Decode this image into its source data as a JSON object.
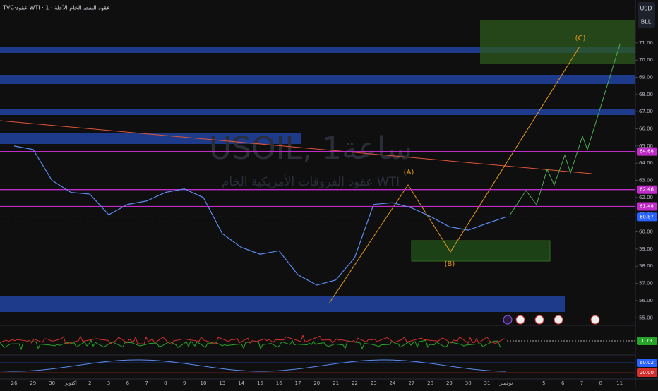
{
  "header": {
    "symbol": "TVC·عقود WTI · 1 · عقود النفط الخام الآجلة",
    "currency": "USD",
    "unit": "BLL"
  },
  "chart_data": {
    "type": "line",
    "watermark": "USOIL, 1ساعة",
    "watermark_subtitle": "عقود الفروقات الأمريكية الخام WTI",
    "categories": [
      "26",
      "29",
      "30",
      "أكتوبر",
      "2",
      "3",
      "6",
      "7",
      "8",
      "9",
      "10",
      "13",
      "14",
      "15",
      "16",
      "17",
      "20",
      "21",
      "22",
      "23",
      "24",
      "27",
      "28",
      "29",
      "30",
      "31",
      "نوفمبر",
      null,
      "5",
      "6",
      "7",
      "8",
      "11"
    ],
    "values": [
      65.0,
      64.8,
      63.0,
      62.3,
      62.2,
      61.0,
      61.6,
      61.8,
      62.3,
      62.5,
      62.0,
      59.9,
      59.1,
      58.7,
      58.9,
      57.5,
      56.9,
      57.2,
      58.5,
      61.6,
      61.7,
      61.4,
      60.9,
      60.3,
      60.1,
      60.5,
      60.87,
      null,
      null,
      null,
      null,
      null,
      null
    ],
    "color": "#5b8cf0",
    "ylim": [
      54.6,
      73.5
    ],
    "yticks": [
      {
        "value": 55,
        "label": "55.00"
      },
      {
        "value": 56,
        "label": "56.00"
      },
      {
        "value": 57,
        "label": "57.00"
      },
      {
        "value": 58,
        "label": "58.00"
      },
      {
        "value": 59,
        "label": "59.00"
      },
      {
        "value": 60,
        "label": "60.00"
      },
      {
        "value": 61,
        "label": "61.00"
      },
      {
        "value": 62,
        "label": "62.00"
      },
      {
        "value": 63,
        "label": "63.00"
      },
      {
        "value": 64,
        "label": "64.00"
      },
      {
        "value": 65,
        "label": "65.00"
      },
      {
        "value": 66,
        "label": "66.00"
      },
      {
        "value": 67,
        "label": "67.00"
      },
      {
        "value": 68,
        "label": "68.00"
      },
      {
        "value": 69,
        "label": "69.00"
      },
      {
        "value": 70,
        "label": "70.00"
      },
      {
        "value": 71,
        "label": "71.00"
      }
    ],
    "levels": [
      {
        "value": 64.68,
        "color": "#c02cc8"
      },
      {
        "value": 62.46,
        "color": "#c02cc8"
      },
      {
        "value": 61.48,
        "color": "#c02cc8"
      }
    ],
    "last_price": {
      "value": 60.87,
      "color": "#2962ff"
    },
    "waves": [
      "(A)",
      "(B)",
      "(C)"
    ],
    "oscillator": {
      "value": 1.79,
      "color": "#27a327"
    },
    "stochastic": [
      {
        "value": 60.02,
        "color": "#2962ff"
      },
      {
        "value": 20,
        "label": "20.00",
        "color": "#d32f2f"
      }
    ]
  }
}
